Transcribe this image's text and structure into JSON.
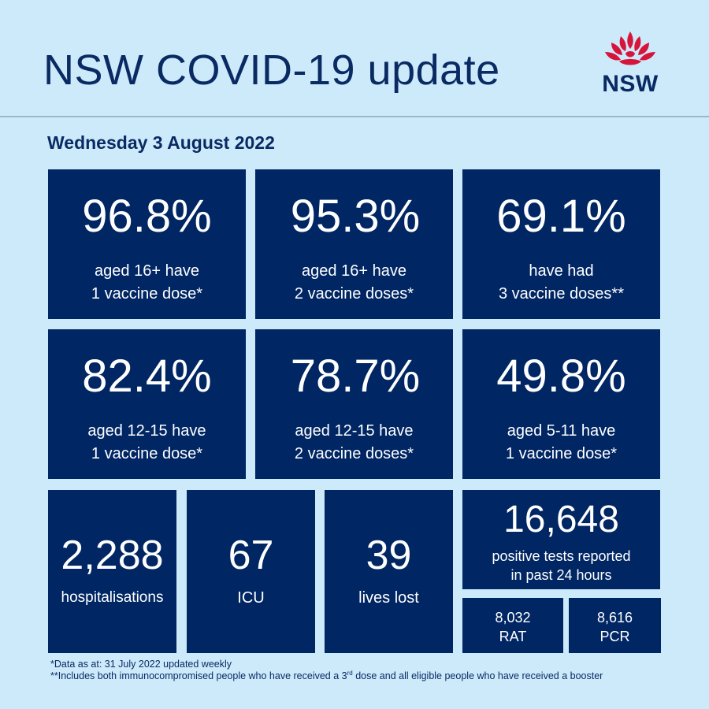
{
  "header": {
    "title": "NSW COVID-19 update",
    "logo_text": "NSW",
    "logo_icon": "waratah-icon"
  },
  "date": "Wednesday 3 August 2022",
  "vaccination_tiles": [
    {
      "value": "96.8%",
      "line1": "aged 16+ have",
      "line2": "1 vaccine dose*"
    },
    {
      "value": "95.3%",
      "line1": "aged 16+ have",
      "line2": "2 vaccine doses*"
    },
    {
      "value": "69.1%",
      "line1": "have had",
      "line2": "3 vaccine doses**"
    },
    {
      "value": "82.4%",
      "line1": "aged 12-15 have",
      "line2": "1 vaccine dose*"
    },
    {
      "value": "78.7%",
      "line1": "aged 12-15 have",
      "line2": "2 vaccine doses*"
    },
    {
      "value": "49.8%",
      "line1": "aged 5-11 have",
      "line2": "1 vaccine dose*"
    }
  ],
  "stats": {
    "hospitalisations": {
      "value": "2,288",
      "label": "hospitalisations"
    },
    "icu": {
      "value": "67",
      "label": "ICU"
    },
    "lives_lost": {
      "value": "39",
      "label": "lives lost"
    },
    "positive_tests": {
      "value": "16,648",
      "line1": "positive tests reported",
      "line2": "in past 24 hours"
    },
    "rat": {
      "value": "8,032",
      "label": "RAT"
    },
    "pcr": {
      "value": "8,616",
      "label": "PCR"
    }
  },
  "footnotes": {
    "note1": "*Data as at: 31 July 2022 updated weekly",
    "note2_pre": "**Includes both immunocompromised people who have received a 3",
    "note2_sup": "rd",
    "note2_post": " dose and all eligible people who have received a booster"
  },
  "colors": {
    "background": "#cdeafb",
    "tile": "#002664",
    "text_dark": "#0a2a63",
    "waratah_red": "#d7153a"
  }
}
